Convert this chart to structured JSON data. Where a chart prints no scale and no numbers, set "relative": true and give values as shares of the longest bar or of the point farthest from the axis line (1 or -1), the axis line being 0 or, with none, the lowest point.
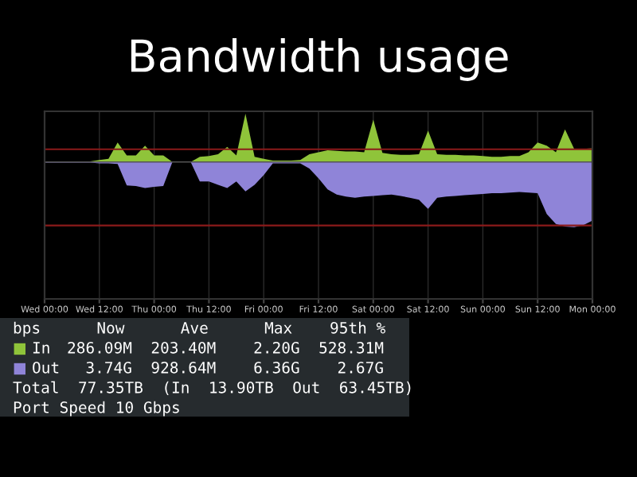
{
  "chart_data": {
    "type": "area",
    "title": "Bandwidth usage",
    "relative": true,
    "grid": "x",
    "legend": "bottom left",
    "categories": [
      "Wed 00:00",
      null,
      null,
      null,
      null,
      null,
      "Wed 12:00",
      null,
      null,
      null,
      null,
      null,
      "Thu 00:00",
      null,
      null,
      null,
      null,
      null,
      "Thu 12:00",
      null,
      null,
      null,
      null,
      null,
      "Fri 00:00",
      null,
      null,
      null,
      null,
      null,
      "Fri 12:00",
      null,
      null,
      null,
      null,
      null,
      "Sat 00:00",
      null,
      null,
      null,
      null,
      null,
      "Sat 12:00",
      null,
      null,
      null,
      null,
      null,
      "Sun 00:00",
      null,
      null,
      null,
      null,
      null,
      "Sun 12:00",
      null,
      null,
      null,
      null,
      null,
      "Mon 00:00"
    ],
    "series": [
      {
        "name": "In",
        "color": "#8fc43a",
        "values": [
          0.01,
          0.01,
          0.01,
          0.01,
          0.01,
          0.01,
          0.03,
          0.05,
          0.3,
          0.1,
          0.1,
          0.25,
          0.1,
          0.1,
          0,
          0,
          0,
          0.08,
          0.09,
          0.12,
          0.23,
          0.1,
          0.74,
          0.08,
          0.05,
          0.02,
          0.02,
          0.02,
          0.03,
          0.12,
          0.15,
          0.18,
          0.17,
          0.16,
          0.16,
          0.15,
          0.65,
          0.14,
          0.12,
          0.11,
          0.11,
          0.12,
          0.48,
          0.12,
          0.11,
          0.11,
          0.1,
          0.1,
          0.09,
          0.08,
          0.08,
          0.09,
          0.09,
          0.15,
          0.3,
          0.25,
          0.15,
          0.5,
          0.2,
          0.2,
          0.21
        ]
      },
      {
        "name": "Out",
        "color": "#8f84d8",
        "values": [
          -0.01,
          -0.01,
          -0.01,
          -0.01,
          -0.01,
          -0.01,
          -0.02,
          -0.02,
          -0.03,
          -0.36,
          -0.37,
          -0.4,
          -0.38,
          -0.37,
          0,
          0,
          0,
          -0.3,
          -0.3,
          -0.35,
          -0.4,
          -0.3,
          -0.45,
          -0.35,
          -0.2,
          -0.02,
          -0.02,
          -0.02,
          -0.02,
          -0.1,
          -0.25,
          -0.42,
          -0.5,
          -0.53,
          -0.55,
          -0.53,
          -0.52,
          -0.51,
          -0.5,
          -0.52,
          -0.55,
          -0.58,
          -0.72,
          -0.55,
          -0.53,
          -0.52,
          -0.51,
          -0.5,
          -0.49,
          -0.48,
          -0.48,
          -0.47,
          -0.46,
          -0.47,
          -0.48,
          -0.8,
          -0.95,
          -0.99,
          -1,
          -0.97,
          -0.9
        ]
      }
    ],
    "ref_lines": [
      {
        "axis": "y",
        "value": 0.195,
        "color": "#8b1a1a"
      },
      {
        "axis": "y",
        "value": -0.975,
        "color": "#8b1a1a"
      }
    ],
    "annotations": [
      "bps      Now      Ave      Max    95th %",
      "286.09M  203.40M    2.20G  528.31M",
      "  3.74G  928.64M    6.36G    2.67G",
      "Total  77.35TB  (In  13.90TB  Out  63.45TB)",
      "Port Speed 10 Gbps"
    ]
  }
}
